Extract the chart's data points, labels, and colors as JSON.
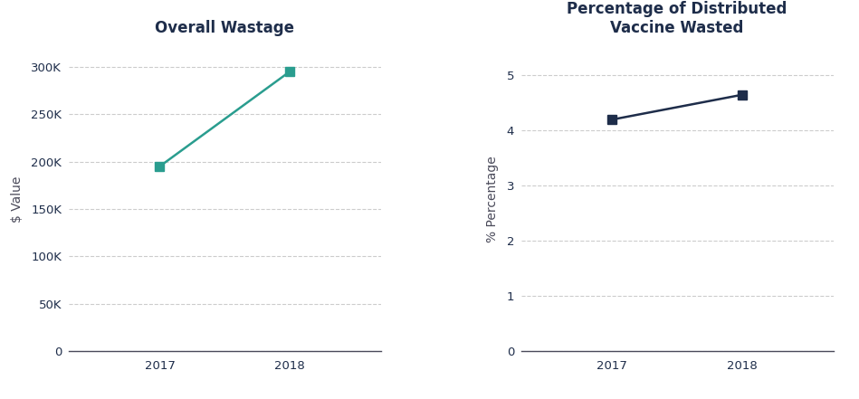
{
  "chart1": {
    "title": "Overall Wastage",
    "years": [
      2017,
      2018
    ],
    "values": [
      195000,
      295000
    ],
    "ylabel": "$ Value",
    "ylim": [
      0,
      320000
    ],
    "yticks": [
      0,
      50000,
      100000,
      150000,
      200000,
      250000,
      300000
    ],
    "ytick_labels": [
      "0",
      "50K",
      "100K",
      "150K",
      "200K",
      "250K",
      "300K"
    ],
    "xlim": [
      2016.3,
      2018.7
    ],
    "line_color": "#2a9d8f",
    "marker": "s",
    "marker_color": "#2a9d8f",
    "markersize": 7
  },
  "chart2": {
    "title": "Percentage of Distributed\nVaccine Wasted",
    "years": [
      2017,
      2018
    ],
    "values": [
      4.2,
      4.65
    ],
    "ylabel": "% Percentage",
    "ylim": [
      0,
      5.5
    ],
    "yticks": [
      0,
      1,
      2,
      3,
      4,
      5
    ],
    "ytick_labels": [
      "0",
      "1",
      "2",
      "3",
      "4",
      "5"
    ],
    "xlim": [
      2016.3,
      2018.7
    ],
    "line_color": "#1e2d4a",
    "marker": "s",
    "marker_color": "#1e2d4a",
    "markersize": 7
  },
  "title_color": "#1e2d4a",
  "axis_color": "#4a4a5a",
  "tick_color": "#1e2d4a",
  "grid_color": "#cccccc",
  "background_color": "#ffffff",
  "title_fontsize": 12,
  "label_fontsize": 10,
  "tick_fontsize": 9.5
}
